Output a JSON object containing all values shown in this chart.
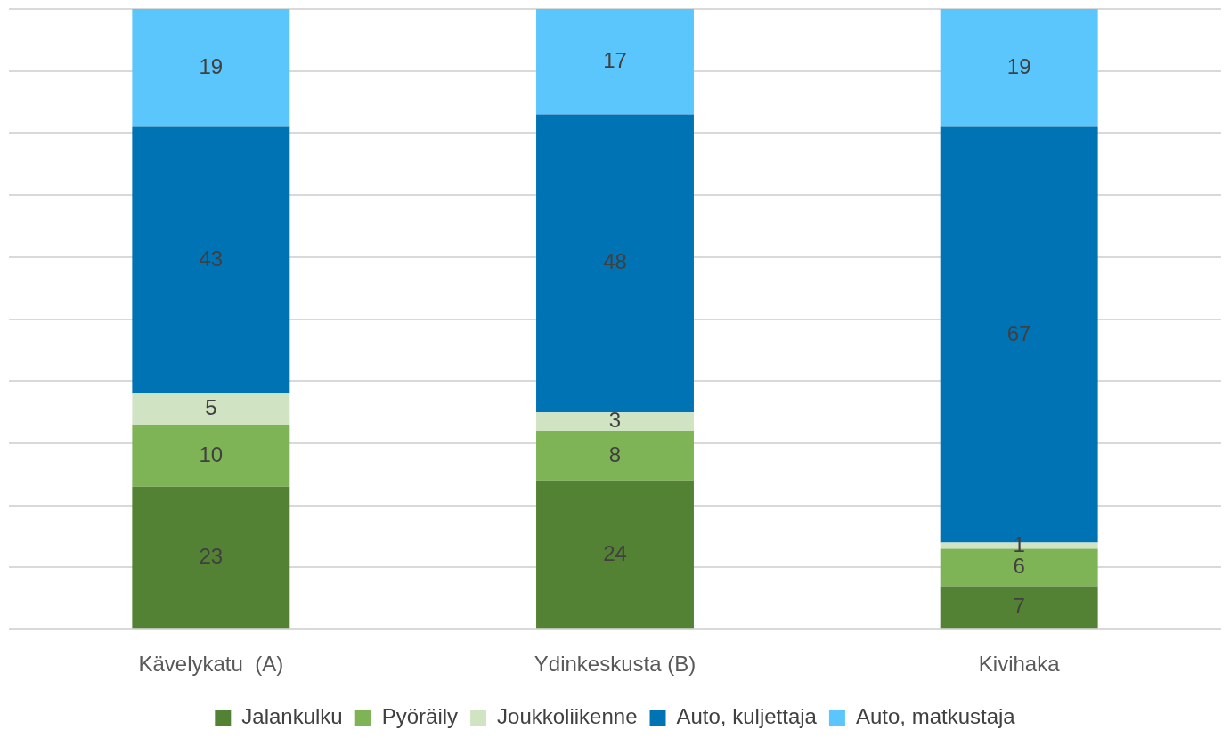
{
  "chart_data": {
    "type": "bar",
    "stacked": true,
    "categories": [
      "Kävelykatu  (A)",
      "Ydinkeskusta (B)",
      "Kivihaka"
    ],
    "series": [
      {
        "name": "Jalankulku",
        "color": "#548235",
        "values": [
          23,
          24,
          7
        ]
      },
      {
        "name": "Pyöräily",
        "color": "#7eb356",
        "values": [
          10,
          8,
          6
        ]
      },
      {
        "name": "Joukkoliikenne",
        "color": "#d0e4c4",
        "values": [
          5,
          3,
          1
        ]
      },
      {
        "name": "Auto, kuljettaja",
        "color": "#0073b5",
        "values": [
          43,
          48,
          67
        ]
      },
      {
        "name": "Auto, matkustaja",
        "color": "#5bc6fc",
        "values": [
          19,
          17,
          19
        ]
      }
    ],
    "ylim": [
      0,
      100
    ],
    "tick_labels": "x",
    "grid": "y",
    "legend": "bottom",
    "data_labels": true
  }
}
